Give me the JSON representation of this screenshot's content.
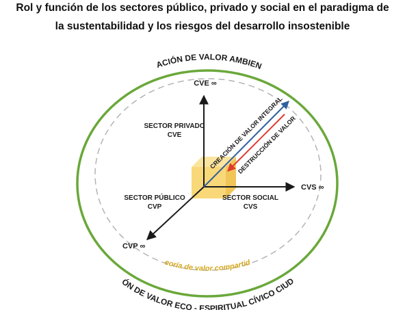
{
  "title": {
    "line1": "Rol y función de los sectores público, privado y social en el paradigma de",
    "line2": "la sustentabilidad y los riesgos del desarrollo insostenible"
  },
  "diagram": {
    "outer_ring_top_label": "CREACIÓN DE VALOR AMBIENTAL",
    "outer_ring_bottom_label": "CREACIÓN DE VALOR ECO - ESPIRITUAL CÍVICO CIUDADANO",
    "inner_ring_label": "Teoría de valor compartido",
    "axis_up_label": "CVE ∞",
    "axis_right_label": "CVS ∞",
    "axis_diag_label": "CVP ∞",
    "private_sector": {
      "name": "SECTOR PRIVADO",
      "code": "CVE"
    },
    "public_sector": {
      "name": "SECTOR PÚBLICO",
      "code": "CVP"
    },
    "social_sector": {
      "name": "SECTOR SOCIAL",
      "code": "CVS"
    },
    "integral_value_label": "CREACIÓN DE VALOR INTEGRAL",
    "destruction_label": "DESTRUCCIÓN DE VALOR",
    "colors": {
      "outer_ring": "#6aa83a",
      "inner_ring": "#b3b3b3",
      "cube": "#f8d46a",
      "integral_arrow": "#2f5f9e",
      "destruction_arrow": "#e03a2e",
      "inner_ring_label": "#d4a820"
    }
  }
}
